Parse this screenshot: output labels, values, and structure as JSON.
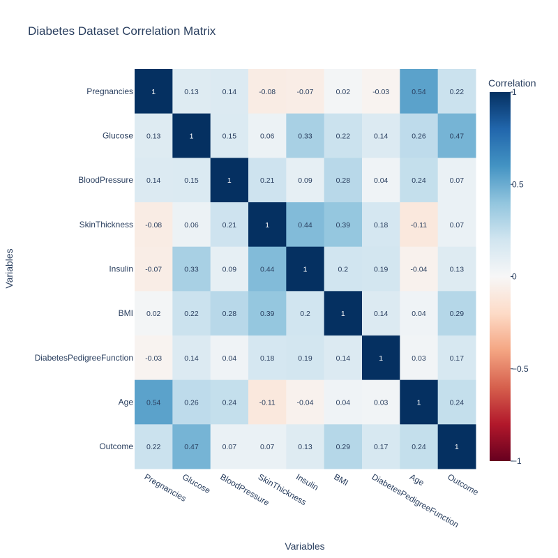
{
  "chart_data": {
    "type": "heatmap",
    "title": "Diabetes Dataset Correlation Matrix",
    "xlabel": "Variables",
    "ylabel": "Variables",
    "categories": [
      "Pregnancies",
      "Glucose",
      "BloodPressure",
      "SkinThickness",
      "Insulin",
      "BMI",
      "DiabetesPedigreeFunction",
      "Age",
      "Outcome"
    ],
    "values": [
      [
        1,
        0.13,
        0.14,
        -0.08,
        -0.07,
        0.02,
        -0.03,
        0.54,
        0.22
      ],
      [
        0.13,
        1,
        0.15,
        0.06,
        0.33,
        0.22,
        0.14,
        0.26,
        0.47
      ],
      [
        0.14,
        0.15,
        1,
        0.21,
        0.09,
        0.28,
        0.04,
        0.24,
        0.07
      ],
      [
        -0.08,
        0.06,
        0.21,
        1,
        0.44,
        0.39,
        0.18,
        -0.11,
        0.07
      ],
      [
        -0.07,
        0.33,
        0.09,
        0.44,
        1,
        0.2,
        0.19,
        -0.04,
        0.13
      ],
      [
        0.02,
        0.22,
        0.28,
        0.39,
        0.2,
        1,
        0.14,
        0.04,
        0.29
      ],
      [
        -0.03,
        0.14,
        0.04,
        0.18,
        0.19,
        0.14,
        1,
        0.03,
        0.17
      ],
      [
        0.54,
        0.26,
        0.24,
        -0.11,
        -0.04,
        0.04,
        0.03,
        1,
        0.24
      ],
      [
        0.22,
        0.47,
        0.07,
        0.07,
        0.13,
        0.29,
        0.17,
        0.24,
        1
      ]
    ],
    "zlim": [
      -1,
      1
    ],
    "colorscale": "RdBu",
    "colorbar": {
      "title": "Correlation",
      "ticks": [
        1,
        0.5,
        0,
        -0.5,
        -1
      ],
      "tick_labels": [
        "1",
        "0.5",
        "0",
        "−0.5",
        "−1"
      ]
    },
    "grid": false
  }
}
